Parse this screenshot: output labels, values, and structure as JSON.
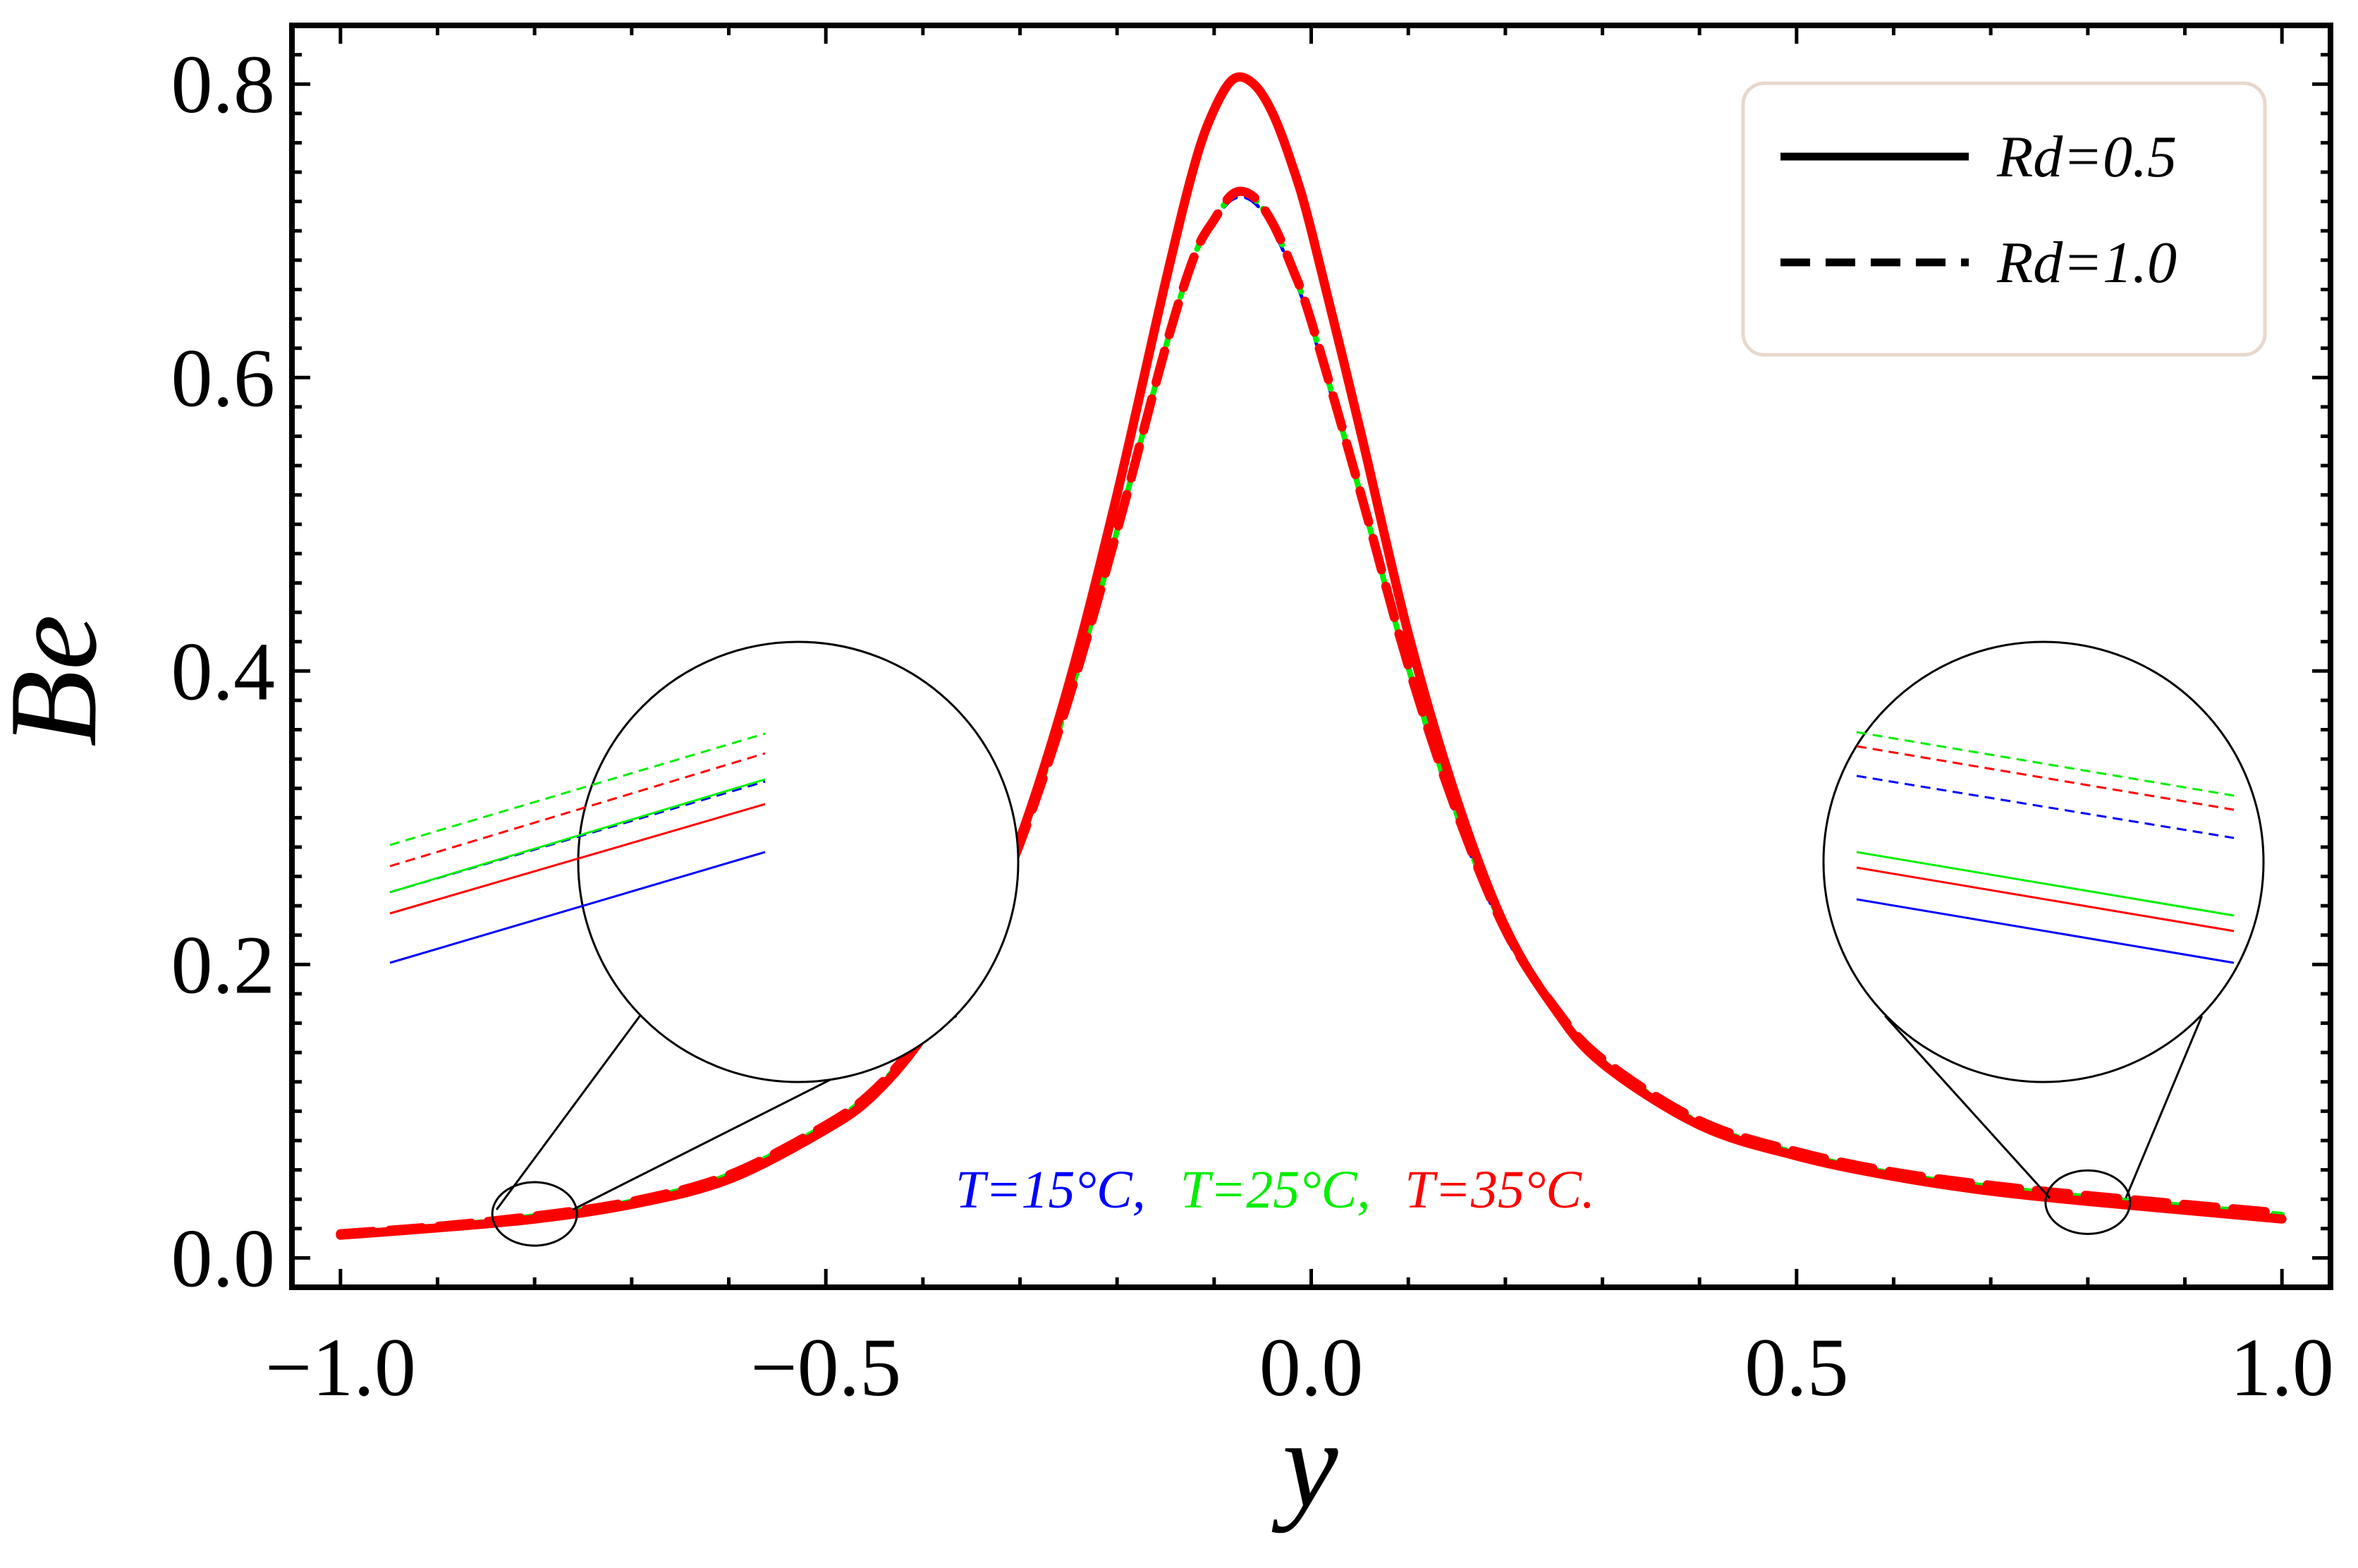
{
  "chart_data": {
    "type": "line",
    "title": "",
    "xlabel": "y",
    "ylabel": "Be",
    "xlim": [
      -1.05,
      1.05
    ],
    "ylim": [
      -0.02,
      0.84
    ],
    "xticks": [
      -1.0,
      -0.5,
      0.0,
      0.5,
      1.0
    ],
    "xtick_labels": [
      "−1.0",
      "−0.5",
      "0.0",
      "0.5",
      "1.0"
    ],
    "yticks": [
      0.0,
      0.2,
      0.4,
      0.6,
      0.8
    ],
    "ytick_labels": [
      "0.0",
      "0.2",
      "0.4",
      "0.6",
      "0.8"
    ],
    "grid": false,
    "legend": {
      "position": "top-right",
      "entries": [
        {
          "label": "Rd=0.5",
          "style": "solid"
        },
        {
          "label": "Rd=1.0",
          "style": "dashed"
        }
      ]
    },
    "annotation": {
      "parts": [
        {
          "text": "T=15°C,",
          "color": "#0000ff"
        },
        {
          "text": "T=25°C,",
          "color": "#00ee00"
        },
        {
          "text": "T=35°C.",
          "color": "#ff0000"
        }
      ]
    },
    "colors": {
      "T15": "#0000ff",
      "T25": "#00ee00",
      "T35": "#ff0000"
    },
    "x": [
      -1.0,
      -0.9,
      -0.8,
      -0.7,
      -0.6,
      -0.5,
      -0.45,
      -0.4,
      -0.35,
      -0.3,
      -0.25,
      -0.2,
      -0.15,
      -0.12,
      -0.1,
      -0.08,
      -0.06,
      -0.04,
      -0.02,
      0.0,
      0.05,
      0.1,
      0.15,
      0.2,
      0.25,
      0.3,
      0.4,
      0.5,
      0.6,
      0.7,
      0.8,
      0.9,
      1.0
    ],
    "series": [
      {
        "name": "Rd=0.5, T=15°C",
        "rd": "0.5",
        "temp": "15",
        "style": "solid",
        "color": "#0000ff",
        "values": [
          0.015,
          0.02,
          0.026,
          0.036,
          0.053,
          0.087,
          0.111,
          0.15,
          0.205,
          0.285,
          0.39,
          0.52,
          0.665,
          0.745,
          0.782,
          0.803,
          0.8,
          0.78,
          0.745,
          0.7,
          0.565,
          0.425,
          0.312,
          0.225,
          0.17,
          0.132,
          0.09,
          0.069,
          0.055,
          0.045,
          0.038,
          0.032,
          0.026
        ]
      },
      {
        "name": "Rd=0.5, T=25°C",
        "rd": "0.5",
        "temp": "25",
        "style": "solid",
        "color": "#00ee00",
        "values": [
          0.0155,
          0.0205,
          0.0265,
          0.0365,
          0.0535,
          0.0875,
          0.1115,
          0.1505,
          0.2055,
          0.2855,
          0.3905,
          0.5205,
          0.6655,
          0.7455,
          0.7825,
          0.8035,
          0.8005,
          0.7805,
          0.7455,
          0.7005,
          0.5655,
          0.4255,
          0.3125,
          0.2255,
          0.1705,
          0.1325,
          0.0905,
          0.0695,
          0.0555,
          0.0455,
          0.0385,
          0.0325,
          0.0265
        ]
      },
      {
        "name": "Rd=0.5, T=35°C",
        "rd": "0.5",
        "temp": "35",
        "style": "solid",
        "color": "#ff0000",
        "values": [
          0.0155,
          0.0205,
          0.0265,
          0.0365,
          0.0535,
          0.0875,
          0.1115,
          0.1505,
          0.2055,
          0.2855,
          0.3905,
          0.5205,
          0.6655,
          0.7455,
          0.7825,
          0.8035,
          0.8005,
          0.7805,
          0.7455,
          0.7005,
          0.5655,
          0.4255,
          0.3125,
          0.2255,
          0.1705,
          0.1325,
          0.0905,
          0.0695,
          0.0555,
          0.0455,
          0.0385,
          0.0325,
          0.0265
        ]
      },
      {
        "name": "Rd=1.0, T=15°C",
        "rd": "1.0",
        "temp": "15",
        "style": "dashed",
        "color": "#0000ff",
        "values": [
          0.016,
          0.021,
          0.028,
          0.038,
          0.056,
          0.09,
          0.114,
          0.152,
          0.205,
          0.282,
          0.38,
          0.495,
          0.62,
          0.683,
          0.707,
          0.722,
          0.72,
          0.702,
          0.672,
          0.635,
          0.52,
          0.4,
          0.3,
          0.22,
          0.168,
          0.132,
          0.091,
          0.07,
          0.056,
          0.047,
          0.04,
          0.034,
          0.028
        ]
      },
      {
        "name": "Rd=1.0, T=25°C",
        "rd": "1.0",
        "temp": "25",
        "style": "dashed",
        "color": "#00ee00",
        "values": [
          0.0165,
          0.0215,
          0.0285,
          0.0385,
          0.0565,
          0.0905,
          0.1145,
          0.1525,
          0.2055,
          0.2825,
          0.3805,
          0.4955,
          0.6205,
          0.6835,
          0.7075,
          0.7245,
          0.7225,
          0.7045,
          0.6745,
          0.6375,
          0.5225,
          0.4025,
          0.3025,
          0.2225,
          0.1705,
          0.1345,
          0.0925,
          0.0715,
          0.0575,
          0.0485,
          0.0415,
          0.0355,
          0.0295
        ]
      },
      {
        "name": "Rd=1.0, T=35°C",
        "rd": "1.0",
        "temp": "35",
        "style": "dashed",
        "color": "#ff0000",
        "values": [
          0.0165,
          0.0215,
          0.0285,
          0.0385,
          0.0565,
          0.0905,
          0.1145,
          0.1525,
          0.2055,
          0.2825,
          0.3805,
          0.4955,
          0.6205,
          0.6835,
          0.7075,
          0.7255,
          0.7235,
          0.7055,
          0.6755,
          0.6385,
          0.5235,
          0.4035,
          0.3035,
          0.2235,
          0.1715,
          0.1355,
          0.0935,
          0.0725,
          0.0585,
          0.0495,
          0.0425,
          0.0365,
          0.0305
        ]
      }
    ]
  }
}
